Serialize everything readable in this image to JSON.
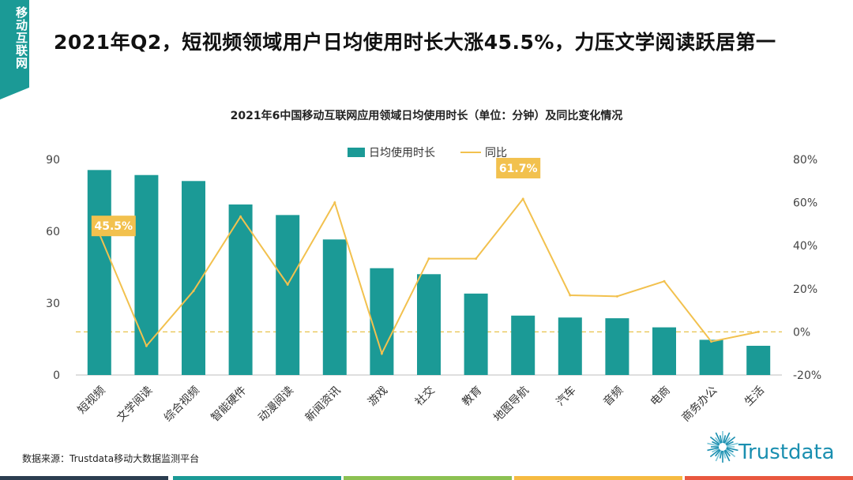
{
  "tag": {
    "text": "移动互联网"
  },
  "headline": "2021年Q2，短视频领域用户日均使用时长大涨45.5%，力压文学阅读跃居第一",
  "source": "数据来源：Trustdata移动大数据监测平台",
  "logo": {
    "text": "Trustdata",
    "icon": "starburst-logo-icon"
  },
  "colors": {
    "bar": "#1b9a96",
    "line": "#f2c14e",
    "callout": "#f2c14e",
    "zero_line": "#e8c24a"
  },
  "footer_colors": [
    "#2c3e50",
    "#1b9a96",
    "#8cc152",
    "#f6bb42",
    "#e9573f"
  ],
  "chart_data": {
    "type": "bar",
    "title": "2021年6中国移动互联网应用领域日均使用时长（单位：分钟）及同比变化情况",
    "categories": [
      "短视频",
      "文学阅读",
      "综合视频",
      "智能硬件",
      "动漫阅读",
      "新闻资讯",
      "游戏",
      "社交",
      "教育",
      "地图导航",
      "汽车",
      "音频",
      "电商",
      "商务办公",
      "生活"
    ],
    "series": [
      {
        "name": "日均使用时长",
        "axis": "left",
        "values": [
          85.6,
          83.5,
          81.0,
          71.2,
          66.8,
          56.6,
          44.6,
          42.1,
          34.0,
          24.8,
          24.0,
          23.7,
          19.9,
          14.7,
          12.2
        ]
      },
      {
        "name": "同比",
        "axis": "right",
        "type": "line",
        "values": [
          45.5,
          -6.5,
          19.0,
          53.5,
          22.0,
          60.0,
          -10.0,
          34.0,
          34.0,
          61.7,
          17.0,
          16.5,
          23.5,
          -4.5,
          0.0
        ]
      }
    ],
    "ylim_left": [
      0,
      90
    ],
    "yticks_left": [
      "0",
      "30",
      "60",
      "90"
    ],
    "ylim_right": [
      -20,
      80
    ],
    "yticks_right": [
      "-20%",
      "0%",
      "20%",
      "40%",
      "60%",
      "80%"
    ],
    "legend": [
      "日均使用时长",
      "同比"
    ],
    "annotations": [
      {
        "index": 0,
        "text": "45.5%"
      },
      {
        "index": 9,
        "text": "61.7%"
      }
    ]
  }
}
